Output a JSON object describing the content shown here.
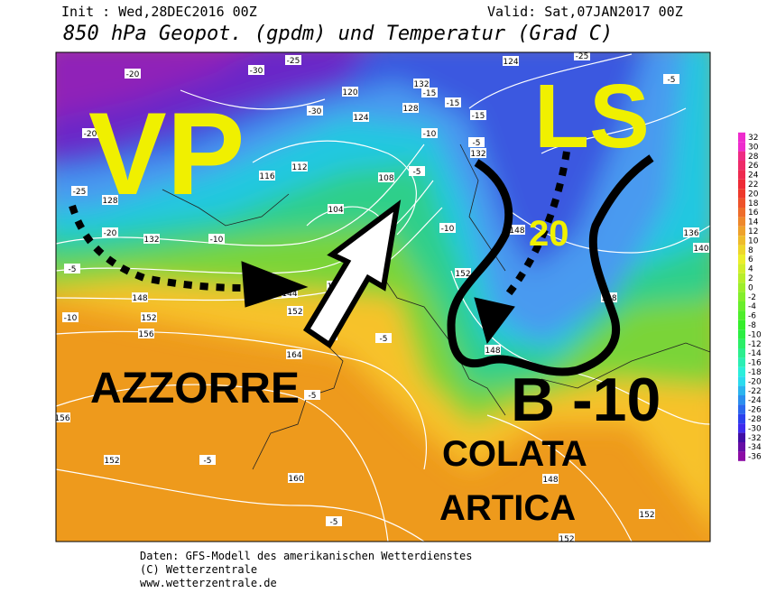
{
  "header": {
    "init": "Init : Wed,28DEC2016 00Z",
    "valid": "Valid: Sat,07JAN2017 00Z",
    "title": "850 hPa Geopot. (gpdm) und Temperatur (Grad C)"
  },
  "annotations": {
    "vp": "VP",
    "ls": "LS",
    "twenty": "20",
    "azzorre": "AZZORRE",
    "b": "B -10",
    "colata": "COLATA",
    "artica": "ARTICA"
  },
  "colorbar": {
    "labels": [
      32,
      30,
      28,
      26,
      24,
      22,
      20,
      18,
      16,
      14,
      12,
      10,
      8,
      6,
      4,
      2,
      0,
      -2,
      -4,
      -6,
      -8,
      -10,
      -12,
      -14,
      -16,
      -18,
      -20,
      -22,
      -24,
      -26,
      -28,
      -30,
      -32,
      -34,
      -36
    ]
  },
  "contour_labels": [
    -20,
    -30,
    -25,
    -30,
    120,
    132,
    124,
    128,
    -15,
    -15,
    -15,
    -10,
    -5,
    132,
    124,
    -25,
    -5,
    -20,
    -25,
    128,
    -20,
    -10,
    -5,
    132,
    116,
    112,
    108,
    104,
    -5,
    144,
    140,
    152,
    148,
    152,
    156,
    -10,
    160,
    164,
    -10,
    152,
    148,
    136,
    140,
    128,
    148,
    -5,
    -5,
    156,
    152,
    160,
    148,
    152,
    -5,
    -5,
    152
  ],
  "footer": {
    "source": "Daten: GFS-Modell des amerikanischen Wetterdienstes",
    "copyright": "(C) Wetterzentrale",
    "url": "www.wetterzentrale.de"
  }
}
